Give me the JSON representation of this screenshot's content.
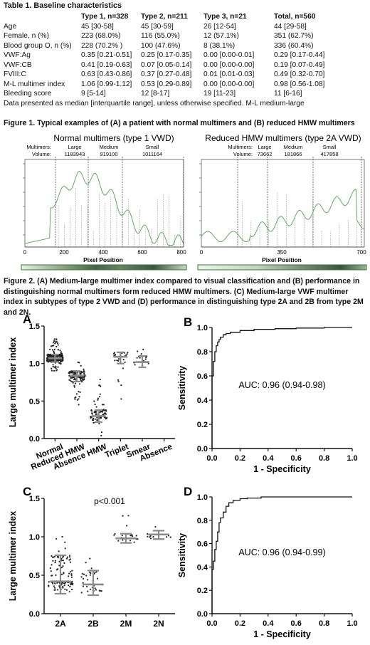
{
  "table": {
    "title": "Table 1. Baseline characteristics",
    "headers": [
      "",
      "Type 1, n=328",
      "Type 2, n=211",
      "Type 3, n=21",
      "Total, n=560"
    ],
    "rows": [
      [
        "Age",
        "45 [30-58]",
        "45 [30-59]",
        "26 [12-54]",
        "44 [29-58]"
      ],
      [
        "Female, n (%)",
        "223 (68.0%)",
        "116 (55.0%)",
        "12 (57.1%)",
        "351 (62.7%)"
      ],
      [
        "Blood group O, n (%)",
        "228 (70.2% )",
        "100 (47.6%)",
        "8 (38.1%)",
        "336 (60.4%)"
      ],
      [
        "VWF:Ag",
        "0.35 [0.21-0.51]",
        "0.25 [0.17-0.35]",
        "0.00 [0.00-0.01]",
        "0.29 [0.17-0.44]"
      ],
      [
        "VWF:CB",
        "0.41 [0.19-0.63]",
        "0.07 [0.05-0.14]",
        "0.00 [0.00-0.00]",
        "0.19 [0.07-0.49]"
      ],
      [
        "FVIII:C",
        "0.63 [0.43-0.86]",
        "0.37 [0.27-0.48]",
        "0.01 [0.01-0.03]",
        "0.49 [0.32-0.70]"
      ],
      [
        "M-L multimer index",
        "1.06 [0.99-1.12]",
        "0.53 [0.29-0.89]",
        "0.00 [0.00-0.00]",
        "0.98 [0.56-1.08]"
      ],
      [
        "Bleeding score",
        "9 [5-14]",
        "12 [8-17]",
        "19 [11-23]",
        "11 [6-16]"
      ]
    ],
    "footnote": "Data presented as median [interquartile range], unless otherwise specified. M-L medium-large"
  },
  "figure1": {
    "caption": "Figure 1. Typical examples of (A) a patient with normal multimers and (B) reduced HMW multimers",
    "panels": [
      {
        "title": "Normal multimers (type 1 VWD)",
        "multimers_label": "Multimers:",
        "volume_label": "Volume:",
        "segments": [
          {
            "name": "Large",
            "volume": "1183943"
          },
          {
            "name": "Medium",
            "volume": "919100"
          },
          {
            "name": "Small",
            "volume": "1011164"
          }
        ],
        "xlabel": "Pixel Position",
        "xticks": [
          "0",
          "200",
          "400",
          "600",
          "800"
        ]
      },
      {
        "title": "Reduced HMW multimers (type 2A VWD)",
        "multimers_label": "Multimers:",
        "volume_label": "Volume:",
        "segments": [
          {
            "name": "Large",
            "volume": "73662"
          },
          {
            "name": "Medium",
            "volume": "181866"
          },
          {
            "name": "Small",
            "volume": "417858"
          }
        ],
        "xlabel": "Pixel Position",
        "xticks": [
          "0",
          "350",
          "700"
        ]
      }
    ]
  },
  "figure2": {
    "caption": "Figure 2. (A) Medium-large multimer index compared to visual classification and (B) performance in distinguishing normal multimers form reduced HMW multimers. (C) Medium-large VWF multimer index in subtypes of type 2 VWD and (D) performance in distinguishing type 2A and 2B from type 2M and 2N."
  },
  "chart_data": [
    {
      "panel": "A",
      "type": "scatter",
      "ylabel": "Large multimer index",
      "categories": [
        "Normal",
        "Reduced HMW",
        "Absence HMW",
        "Triplet",
        "Smear",
        "Absence"
      ],
      "ylim": [
        0.0,
        1.5
      ],
      "yticks": [
        "0.0",
        "0.5",
        "1.0",
        "1.5"
      ],
      "median": [
        1.07,
        0.84,
        0.3,
        1.09,
        1.02,
        null
      ],
      "q1": [
        1.02,
        0.76,
        0.22,
        1.0,
        0.95,
        null
      ],
      "q3": [
        1.12,
        0.9,
        0.38,
        1.15,
        1.1,
        null
      ],
      "n_points": [
        300,
        120,
        90,
        25,
        15,
        0
      ],
      "min": [
        0.9,
        0.45,
        0.02,
        0.52,
        0.85,
        null
      ],
      "max": [
        1.33,
        1.02,
        0.82,
        1.2,
        1.2,
        null
      ]
    },
    {
      "panel": "B",
      "type": "line",
      "xlabel": "1 - Specificity",
      "ylabel": "Sensitivity",
      "xlim": [
        0.0,
        1.0
      ],
      "ylim": [
        0.0,
        1.0
      ],
      "ticks": [
        "0.0",
        "0.2",
        "0.4",
        "0.6",
        "0.8",
        "1.0"
      ],
      "annotation": "AUC: 0.96 (0.94-0.98)",
      "x": [
        0,
        0.01,
        0.02,
        0.03,
        0.04,
        0.05,
        0.06,
        0.08,
        0.1,
        0.13,
        0.2,
        0.3,
        0.45,
        0.6,
        0.8,
        1.0
      ],
      "y": [
        0,
        0.6,
        0.72,
        0.8,
        0.85,
        0.88,
        0.9,
        0.92,
        0.94,
        0.95,
        0.96,
        0.975,
        0.985,
        0.99,
        0.995,
        1.0
      ]
    },
    {
      "panel": "C",
      "type": "scatter",
      "ylabel": "Large multimer index",
      "annotation": "p<0.001",
      "categories": [
        "2A",
        "2B",
        "2M",
        "2N"
      ],
      "ylim": [
        0.0,
        1.5
      ],
      "yticks": [
        "0.0",
        "0.5",
        "1.0",
        "1.5"
      ],
      "median": [
        0.42,
        0.38,
        0.98,
        1.03
      ],
      "q1": [
        0.26,
        0.24,
        0.92,
        0.97
      ],
      "q3": [
        0.76,
        0.56,
        1.04,
        1.08
      ],
      "n_points": [
        110,
        35,
        20,
        10
      ],
      "min": [
        0.02,
        0.05,
        0.82,
        0.88
      ],
      "max": [
        1.08,
        0.97,
        1.3,
        1.17
      ]
    },
    {
      "panel": "D",
      "type": "line",
      "xlabel": "1 - Specificity",
      "ylabel": "Sensitivity",
      "xlim": [
        0.0,
        1.0
      ],
      "ylim": [
        0.0,
        1.0
      ],
      "ticks": [
        "0.0",
        "0.2",
        "0.4",
        "0.6",
        "0.8",
        "1.0"
      ],
      "annotation": "AUC: 0.96 (0.94-0.99)",
      "x": [
        0,
        0.01,
        0.02,
        0.03,
        0.04,
        0.05,
        0.06,
        0.08,
        0.1,
        0.12,
        0.15,
        0.2,
        0.25,
        0.35,
        0.5,
        1.0
      ],
      "y": [
        0,
        0.38,
        0.45,
        0.55,
        0.62,
        0.7,
        0.78,
        0.82,
        0.87,
        0.92,
        0.95,
        0.97,
        0.985,
        0.99,
        1.0,
        1.0
      ]
    }
  ],
  "panel_letters": [
    "A",
    "B",
    "C",
    "D"
  ]
}
